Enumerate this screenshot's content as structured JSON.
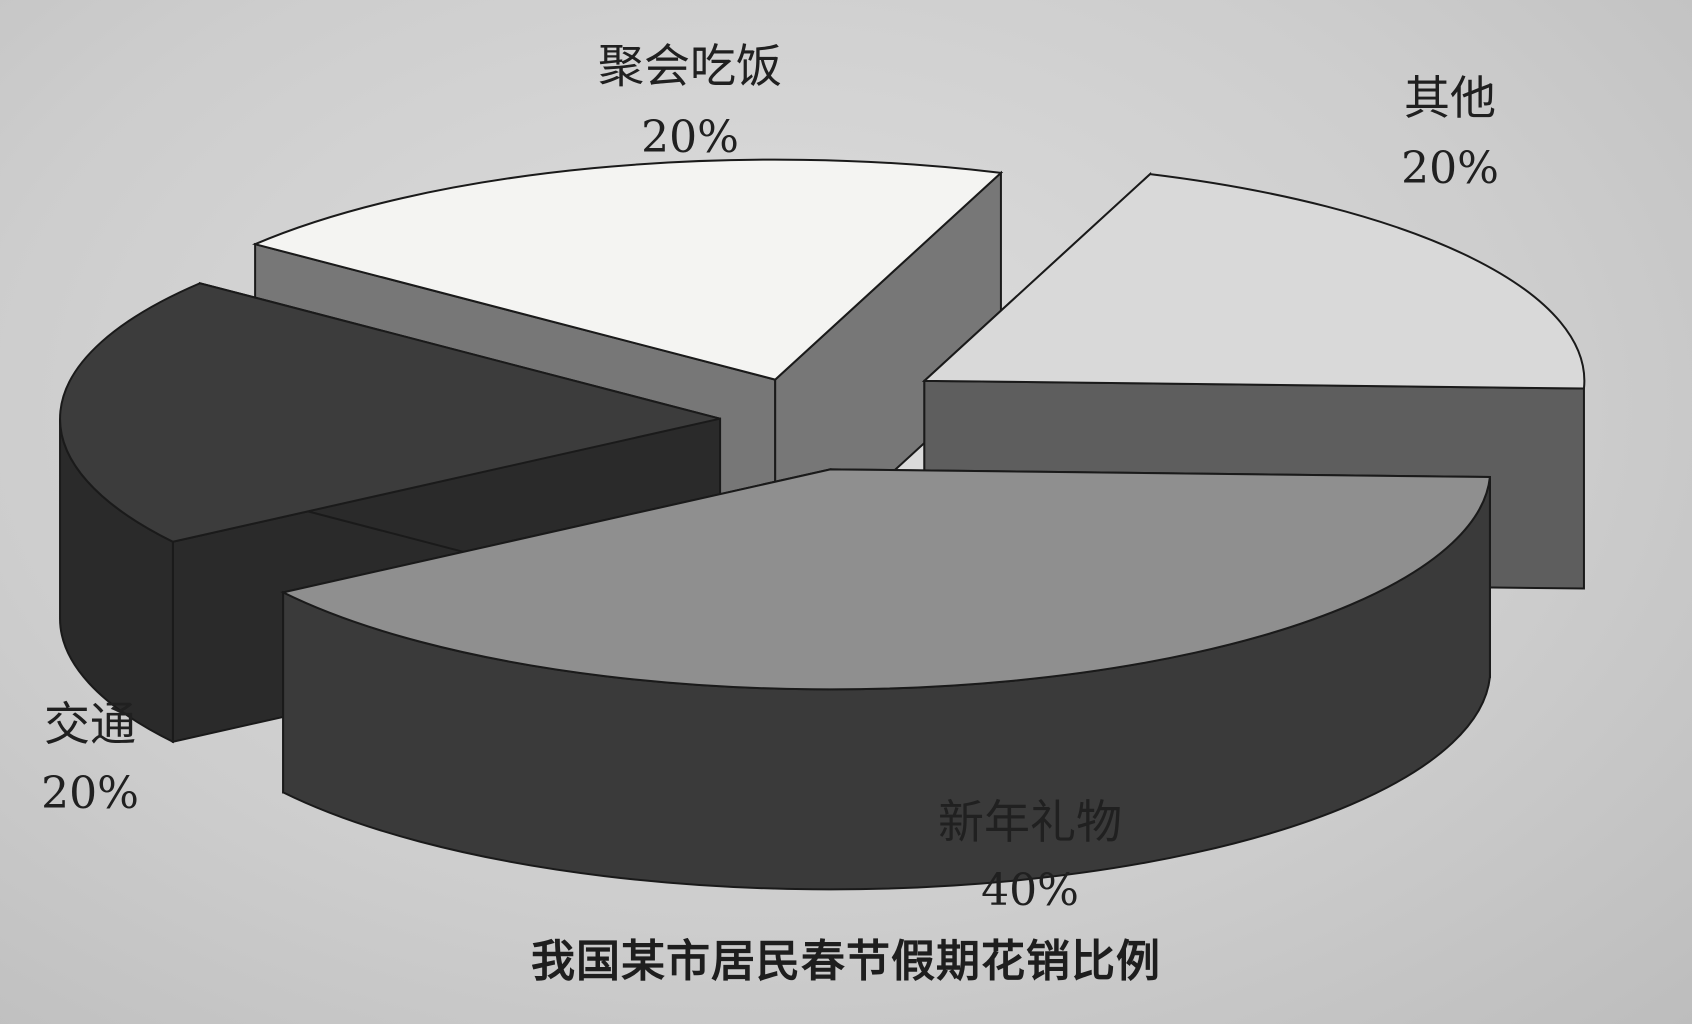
{
  "chart_data": {
    "type": "pie",
    "title": "我国某市居民春节假期花销比例",
    "style": "3d-exploded",
    "slices": [
      {
        "label": "新年礼物",
        "value": 40,
        "value_label": "40%",
        "color": "#8f8f8f",
        "side_color": "#3a3a3a"
      },
      {
        "label": "交通",
        "value": 20,
        "value_label": "20%",
        "color": "#3c3c3c",
        "side_color": "#2a2a2a"
      },
      {
        "label": "聚会吃饭",
        "value": 20,
        "value_label": "20%",
        "color": "#f4f4f2",
        "side_color": "#777777"
      },
      {
        "label": "其他",
        "value": 20,
        "value_label": "20%",
        "color": "#d9d9d9",
        "side_color": "#5e5e5e"
      }
    ]
  }
}
